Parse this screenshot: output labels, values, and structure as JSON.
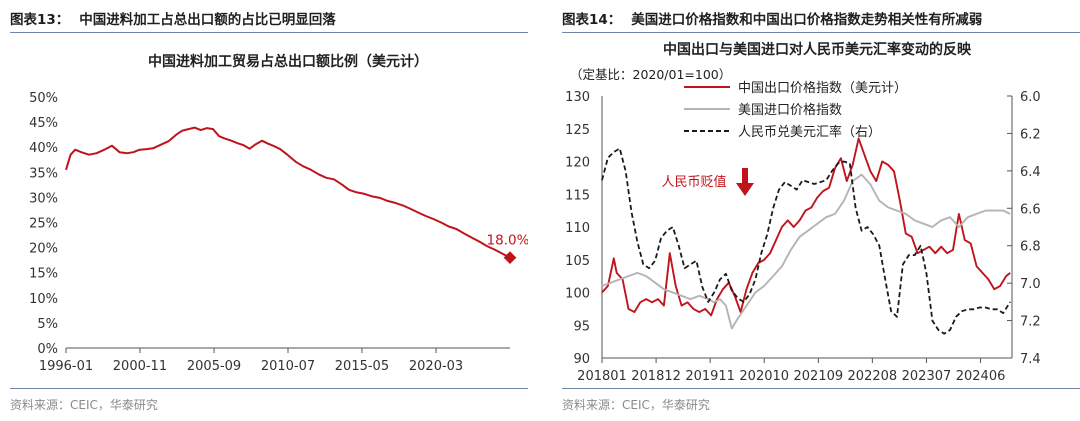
{
  "left_panel": {
    "figure_number": "图表13：",
    "figure_title": "中国进料加工占总出口额的占比已明显回落",
    "source": "资料来源：CEIC，华泰研究"
  },
  "right_panel": {
    "figure_number": "图表14：",
    "figure_title": "美国进口价格指数和中国出口价格指数走势相关性有所减弱",
    "source": "资料来源：CEIC，华泰研究"
  },
  "chart_data": [
    {
      "type": "line",
      "title": "中国进料加工贸易占总出口额比例（美元计）",
      "ylim": [
        0,
        50
      ],
      "yticks": [
        "0%",
        "5%",
        "10%",
        "15%",
        "20%",
        "25%",
        "30%",
        "35%",
        "40%",
        "45%",
        "50%"
      ],
      "x_tick_labels": [
        "1996-01",
        "2000-11",
        "2005-09",
        "2010-07",
        "2015-05",
        "2020-03"
      ],
      "x_range": [
        1996.0,
        2025.0
      ],
      "color": "#c0141c",
      "end_annotation": "18.0%",
      "series": [
        {
          "name": "中国进料加工贸易占总出口额比例",
          "x": [
            1996.0,
            1996.3,
            1996.6,
            1997.0,
            1997.5,
            1998.0,
            1998.5,
            1999.0,
            1999.5,
            2000.0,
            2000.4,
            2000.8,
            2001.2,
            2001.7,
            2002.2,
            2002.7,
            2003.2,
            2003.6,
            2004.0,
            2004.4,
            2004.8,
            2005.2,
            2005.6,
            2006.0,
            2006.4,
            2006.8,
            2007.2,
            2007.6,
            2008.0,
            2008.4,
            2008.8,
            2009.2,
            2009.6,
            2010.0,
            2010.5,
            2011.0,
            2011.5,
            2012.0,
            2012.5,
            2013.0,
            2013.5,
            2014.0,
            2014.5,
            2015.0,
            2015.5,
            2016.0,
            2016.5,
            2017.0,
            2017.5,
            2018.0,
            2018.5,
            2019.0,
            2019.5,
            2020.0,
            2020.5,
            2021.0,
            2021.5,
            2022.0,
            2022.5,
            2023.0,
            2023.5,
            2024.0,
            2024.5,
            2025.0
          ],
          "values": [
            35.5,
            38.5,
            39.5,
            39.0,
            38.5,
            38.8,
            39.5,
            40.3,
            39.0,
            38.8,
            39.0,
            39.5,
            39.6,
            39.8,
            40.5,
            41.2,
            42.5,
            43.3,
            43.6,
            43.9,
            43.4,
            43.8,
            43.6,
            42.2,
            41.7,
            41.3,
            40.8,
            40.4,
            39.7,
            40.6,
            41.3,
            40.7,
            40.2,
            39.6,
            38.4,
            37.1,
            36.2,
            35.5,
            34.6,
            33.9,
            33.6,
            32.6,
            31.5,
            31.0,
            30.7,
            30.2,
            29.9,
            29.3,
            28.9,
            28.4,
            27.7,
            27.0,
            26.3,
            25.7,
            25.0,
            24.2,
            23.7,
            22.8,
            22.0,
            21.2,
            20.3,
            19.6,
            18.8,
            18.0
          ]
        }
      ]
    },
    {
      "type": "line",
      "title": "中国出口与美国进口对人民币美元汇率变动的反映",
      "base_note": "（定基比：2020/01=100）",
      "ylim_left": [
        90,
        130
      ],
      "yticks_left": [
        "90",
        "95",
        "100",
        "105",
        "110",
        "115",
        "120",
        "125",
        "130"
      ],
      "ylim_right": [
        6.0,
        7.4
      ],
      "right_axis_inverted": true,
      "yticks_right": [
        "6.0",
        "6.2",
        "6.4",
        "6.6",
        "6.8",
        "7.0",
        "7.2",
        "7.4"
      ],
      "x_tick_labels": [
        "201801",
        "201812",
        "201911",
        "202010",
        "202109",
        "202208",
        "202307",
        "202406"
      ],
      "x_range": [
        2018.0,
        2024.95
      ],
      "annotation": "人民币贬值",
      "series": [
        {
          "name": "中国出口价格指数（美元计）",
          "axis": "left",
          "color": "#c0141c",
          "style": "solid",
          "x": [
            2018.0,
            2018.1,
            2018.2,
            2018.25,
            2018.35,
            2018.45,
            2018.55,
            2018.65,
            2018.75,
            2018.85,
            2018.95,
            2019.05,
            2019.15,
            2019.25,
            2019.35,
            2019.45,
            2019.55,
            2019.65,
            2019.75,
            2019.85,
            2019.95,
            2020.05,
            2020.15,
            2020.25,
            2020.35,
            2020.45,
            2020.55,
            2020.65,
            2020.75,
            2020.85,
            2020.95,
            2021.05,
            2021.15,
            2021.25,
            2021.35,
            2021.45,
            2021.55,
            2021.65,
            2021.75,
            2021.85,
            2021.95,
            2022.05,
            2022.15,
            2022.25,
            2022.35,
            2022.45,
            2022.55,
            2022.65,
            2022.75,
            2022.85,
            2022.95,
            2023.05,
            2023.15,
            2023.25,
            2023.35,
            2023.45,
            2023.55,
            2023.65,
            2023.75,
            2023.85,
            2023.95,
            2024.05,
            2024.15,
            2024.25,
            2024.35,
            2024.45,
            2024.55,
            2024.65,
            2024.75,
            2024.85,
            2024.92
          ],
          "values": [
            100.0,
            101.0,
            105.2,
            103.0,
            102.0,
            97.5,
            97.0,
            98.5,
            99.0,
            98.5,
            99.0,
            98.0,
            106.0,
            101.0,
            98.0,
            98.5,
            97.5,
            97.0,
            97.5,
            96.5,
            99.0,
            100.5,
            101.5,
            99.5,
            97.0,
            100.5,
            103.0,
            104.5,
            105.0,
            106.0,
            108.0,
            110.0,
            111.0,
            110.0,
            111.0,
            112.5,
            113.0,
            114.5,
            115.5,
            116.0,
            119.0,
            120.5,
            117.0,
            119.5,
            123.5,
            121.0,
            118.5,
            117.0,
            120.0,
            119.5,
            118.5,
            114.0,
            109.0,
            108.5,
            106.0,
            106.5,
            107.0,
            106.0,
            107.0,
            106.0,
            106.5,
            112.0,
            108.0,
            107.5,
            104.0,
            103.0,
            102.0,
            100.5,
            101.0,
            102.5,
            103.0
          ]
        },
        {
          "name": "美国进口价格指数",
          "axis": "left",
          "color": "#b4b4b4",
          "style": "solid",
          "x": [
            2018.0,
            2018.15,
            2018.3,
            2018.45,
            2018.6,
            2018.75,
            2018.9,
            2019.05,
            2019.2,
            2019.35,
            2019.5,
            2019.65,
            2019.8,
            2019.9,
            2020.0,
            2020.1,
            2020.2,
            2020.3,
            2020.45,
            2020.6,
            2020.75,
            2020.9,
            2021.05,
            2021.2,
            2021.35,
            2021.5,
            2021.65,
            2021.8,
            2021.95,
            2022.1,
            2022.25,
            2022.4,
            2022.55,
            2022.7,
            2022.85,
            2023.0,
            2023.15,
            2023.3,
            2023.45,
            2023.6,
            2023.75,
            2023.9,
            2024.05,
            2024.2,
            2024.35,
            2024.5,
            2024.65,
            2024.8,
            2024.92
          ],
          "values": [
            101.0,
            101.5,
            102.0,
            102.5,
            103.0,
            102.5,
            101.5,
            100.5,
            100.0,
            99.5,
            99.0,
            99.5,
            99.0,
            98.5,
            99.0,
            98.0,
            94.5,
            96.0,
            98.0,
            100.0,
            101.0,
            102.5,
            104.0,
            106.5,
            108.5,
            109.5,
            110.5,
            111.5,
            112.0,
            114.0,
            117.0,
            118.0,
            116.5,
            114.0,
            113.0,
            112.5,
            112.0,
            111.0,
            110.5,
            110.0,
            111.0,
            111.5,
            110.0,
            111.5,
            112.0,
            112.5,
            112.5,
            112.5,
            112.0
          ]
        },
        {
          "name": "人民币兑美元汇率（右）",
          "axis": "right",
          "color": "#1a1a1a",
          "style": "dashed",
          "x": [
            2018.0,
            2018.1,
            2018.2,
            2018.3,
            2018.4,
            2018.5,
            2018.6,
            2018.7,
            2018.8,
            2018.9,
            2019.0,
            2019.1,
            2019.2,
            2019.3,
            2019.4,
            2019.5,
            2019.6,
            2019.7,
            2019.8,
            2019.9,
            2020.0,
            2020.1,
            2020.2,
            2020.3,
            2020.4,
            2020.5,
            2020.6,
            2020.7,
            2020.8,
            2020.9,
            2021.0,
            2021.1,
            2021.2,
            2021.3,
            2021.4,
            2021.5,
            2021.6,
            2021.7,
            2021.8,
            2021.9,
            2022.0,
            2022.1,
            2022.2,
            2022.3,
            2022.4,
            2022.5,
            2022.6,
            2022.7,
            2022.8,
            2022.9,
            2023.0,
            2023.1,
            2023.2,
            2023.3,
            2023.4,
            2023.5,
            2023.6,
            2023.7,
            2023.8,
            2023.9,
            2024.0,
            2024.1,
            2024.2,
            2024.3,
            2024.4,
            2024.5,
            2024.6,
            2024.7,
            2024.8,
            2024.92
          ],
          "values": [
            6.45,
            6.33,
            6.3,
            6.28,
            6.4,
            6.62,
            6.78,
            6.9,
            6.92,
            6.88,
            6.76,
            6.72,
            6.7,
            6.8,
            6.92,
            6.9,
            6.88,
            7.02,
            7.1,
            7.05,
            6.98,
            6.95,
            7.04,
            7.08,
            7.1,
            7.06,
            6.98,
            6.84,
            6.74,
            6.6,
            6.5,
            6.46,
            6.48,
            6.5,
            6.45,
            6.46,
            6.47,
            6.46,
            6.45,
            6.4,
            6.36,
            6.35,
            6.36,
            6.6,
            6.72,
            6.7,
            6.74,
            6.8,
            6.98,
            7.15,
            7.18,
            6.9,
            6.85,
            6.85,
            6.8,
            6.95,
            7.2,
            7.25,
            7.27,
            7.25,
            7.18,
            7.15,
            7.14,
            7.14,
            7.13,
            7.13,
            7.14,
            7.14,
            7.16,
            7.1
          ]
        }
      ]
    }
  ]
}
